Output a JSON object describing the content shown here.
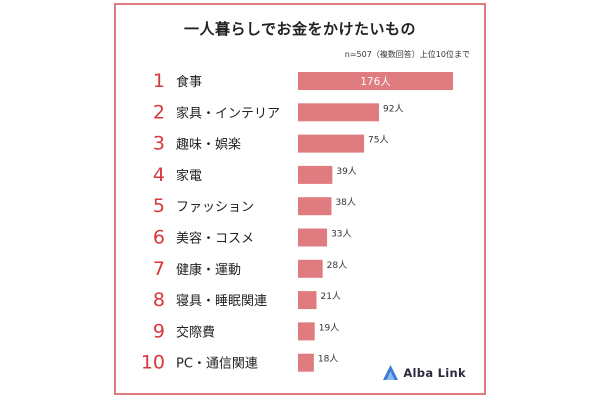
{
  "brand": {
    "name": "Alba Link",
    "accent": "#e07b80",
    "logo_color": "#3a7bd5"
  },
  "chart_data": {
    "type": "bar",
    "orientation": "horizontal",
    "title": "一人暮らしでお金をかけたいもの",
    "note": "n=507（複数回答）上位10位まで",
    "ranks": [
      "1",
      "2",
      "3",
      "4",
      "5",
      "6",
      "7",
      "8",
      "9",
      "10"
    ],
    "categories": [
      "食事",
      "家具・インテリア",
      "趣味・娯楽",
      "家電",
      "ファッション",
      "美容・コスメ",
      "健康・運動",
      "寝具・睡眠関連",
      "交際費",
      "PC・通信関連"
    ],
    "values": [
      176,
      92,
      75,
      39,
      38,
      33,
      28,
      21,
      19,
      18
    ],
    "value_labels": [
      "176人",
      "92人",
      "75人",
      "39人",
      "38人",
      "33人",
      "28人",
      "21人",
      "19人",
      "18人"
    ],
    "bar_color": "#e07b80",
    "rank_color": "#d9363e",
    "grid": false
  }
}
